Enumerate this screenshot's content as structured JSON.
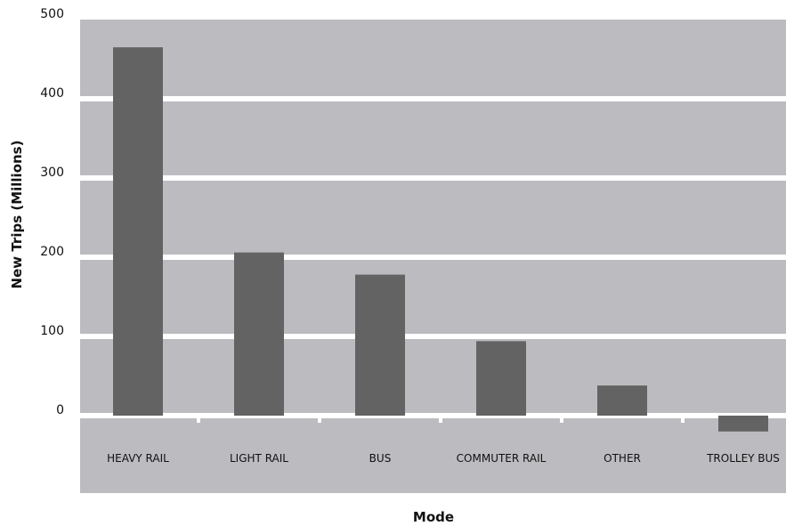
{
  "chart_data": {
    "type": "bar",
    "title": "",
    "xlabel": "Mode",
    "ylabel": "New Trips (Millions)",
    "categories": [
      "HEAVY RAIL",
      "LIGHT RAIL",
      "BUS",
      "COMMUTER RAIL",
      "OTHER",
      "TROLLEY BUS"
    ],
    "values": [
      465,
      206,
      178,
      94,
      38,
      -20
    ],
    "ylim": [
      0,
      500
    ],
    "yticks": [
      0,
      100,
      200,
      300,
      400,
      500
    ],
    "ytick_labels": [
      "0",
      "100",
      "200",
      "300",
      "400",
      "500"
    ],
    "grid": true,
    "legend": "none"
  },
  "colors": {
    "plot_background": "#bcbcc0",
    "bar": "#636363",
    "gridline": "#ffffff",
    "text": "#111111"
  }
}
